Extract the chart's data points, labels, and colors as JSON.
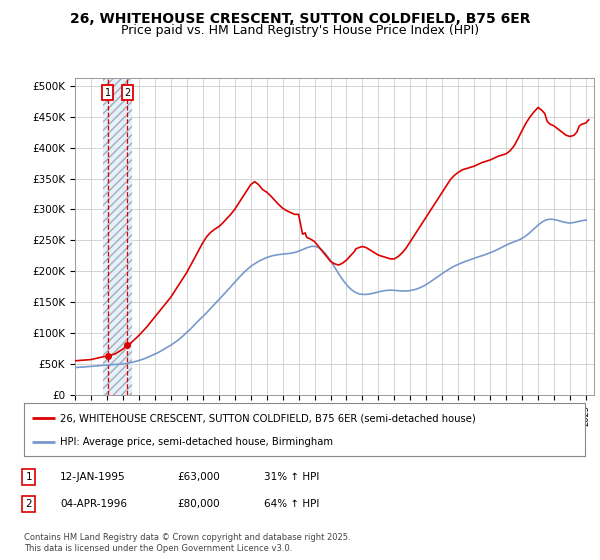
{
  "title": "26, WHITEHOUSE CRESCENT, SUTTON COLDFIELD, B75 6ER",
  "subtitle": "Price paid vs. HM Land Registry's House Price Index (HPI)",
  "ylabel_ticks": [
    "£0",
    "£50K",
    "£100K",
    "£150K",
    "£200K",
    "£250K",
    "£300K",
    "£350K",
    "£400K",
    "£450K",
    "£500K"
  ],
  "ytick_vals": [
    0,
    50000,
    100000,
    150000,
    200000,
    250000,
    300000,
    350000,
    400000,
    450000,
    500000
  ],
  "ylim": [
    0,
    512000
  ],
  "xlim_start": 1993.0,
  "xlim_end": 2025.5,
  "sale1_date": 1995.04,
  "sale1_price": 63000,
  "sale1_label": "1",
  "sale2_date": 1996.27,
  "sale2_price": 80000,
  "sale2_label": "2",
  "hatch_xmin": 1994.75,
  "hatch_xmax": 1996.58,
  "red_color": "#dd0000",
  "blue_color": "#7799cc",
  "hatch_facecolor": "#ddeeff",
  "hatch_edgecolor": "#aaaaaa",
  "grid_color": "#cccccc",
  "background_color": "#ffffff",
  "legend_line1": "26, WHITEHOUSE CRESCENT, SUTTON COLDFIELD, B75 6ER (semi-detached house)",
  "legend_line2": "HPI: Average price, semi-detached house, Birmingham",
  "table_row1": [
    "1",
    "12-JAN-1995",
    "£63,000",
    "31% ↑ HPI"
  ],
  "table_row2": [
    "2",
    "04-APR-1996",
    "£80,000",
    "64% ↑ HPI"
  ],
  "footnote": "Contains HM Land Registry data © Crown copyright and database right 2025.\nThis data is licensed under the Open Government Licence v3.0.",
  "title_fontsize": 10,
  "subtitle_fontsize": 9,
  "axis_fontsize": 7.5,
  "hpi_x": [
    1993.0,
    1993.08,
    1993.17,
    1993.25,
    1993.33,
    1993.42,
    1993.5,
    1993.58,
    1993.67,
    1993.75,
    1993.83,
    1993.92,
    1994.0,
    1994.08,
    1994.17,
    1994.25,
    1994.33,
    1994.42,
    1994.5,
    1994.58,
    1994.67,
    1994.75,
    1994.83,
    1994.92,
    1995.0,
    1995.08,
    1995.17,
    1995.25,
    1995.33,
    1995.42,
    1995.5,
    1995.58,
    1995.67,
    1995.75,
    1995.83,
    1995.92,
    1996.0,
    1996.08,
    1996.17,
    1996.25,
    1996.33,
    1996.42,
    1996.5,
    1996.58,
    1996.67,
    1996.75,
    1996.83,
    1996.92,
    1997.0,
    1997.08,
    1997.17,
    1997.25,
    1997.33,
    1997.42,
    1997.5,
    1997.58,
    1997.67,
    1997.75,
    1997.83,
    1997.92,
    1998.0,
    1998.08,
    1998.17,
    1998.25,
    1998.33,
    1998.42,
    1998.5,
    1998.58,
    1998.67,
    1998.75,
    1998.83,
    1998.92,
    1999.0,
    1999.08,
    1999.17,
    1999.25,
    1999.33,
    1999.42,
    1999.5,
    1999.58,
    1999.67,
    1999.75,
    1999.83,
    1999.92,
    2000.0,
    2000.08,
    2000.17,
    2000.25,
    2000.33,
    2000.42,
    2000.5,
    2000.58,
    2000.67,
    2000.75,
    2000.83,
    2000.92,
    2001.0,
    2001.08,
    2001.17,
    2001.25,
    2001.33,
    2001.42,
    2001.5,
    2001.58,
    2001.67,
    2001.75,
    2001.83,
    2001.92,
    2002.0,
    2002.08,
    2002.17,
    2002.25,
    2002.33,
    2002.42,
    2002.5,
    2002.58,
    2002.67,
    2002.75,
    2002.83,
    2002.92,
    2003.0,
    2003.08,
    2003.17,
    2003.25,
    2003.33,
    2003.42,
    2003.5,
    2003.58,
    2003.67,
    2003.75,
    2003.83,
    2003.92,
    2004.0,
    2004.08,
    2004.17,
    2004.25,
    2004.33,
    2004.42,
    2004.5,
    2004.58,
    2004.67,
    2004.75,
    2004.83,
    2004.92,
    2005.0,
    2005.08,
    2005.17,
    2005.25,
    2005.33,
    2005.42,
    2005.5,
    2005.58,
    2005.67,
    2005.75,
    2005.83,
    2005.92,
    2006.0,
    2006.08,
    2006.17,
    2006.25,
    2006.33,
    2006.42,
    2006.5,
    2006.58,
    2006.67,
    2006.75,
    2006.83,
    2006.92,
    2007.0,
    2007.08,
    2007.17,
    2007.25,
    2007.33,
    2007.42,
    2007.5,
    2007.58,
    2007.67,
    2007.75,
    2007.83,
    2007.92,
    2008.0,
    2008.08,
    2008.17,
    2008.25,
    2008.33,
    2008.42,
    2008.5,
    2008.58,
    2008.67,
    2008.75,
    2008.83,
    2008.92,
    2009.0,
    2009.08,
    2009.17,
    2009.25,
    2009.33,
    2009.42,
    2009.5,
    2009.58,
    2009.67,
    2009.75,
    2009.83,
    2009.92,
    2010.0,
    2010.08,
    2010.17,
    2010.25,
    2010.33,
    2010.42,
    2010.5,
    2010.58,
    2010.67,
    2010.75,
    2010.83,
    2010.92,
    2011.0,
    2011.08,
    2011.17,
    2011.25,
    2011.33,
    2011.42,
    2011.5,
    2011.58,
    2011.67,
    2011.75,
    2011.83,
    2011.92,
    2012.0,
    2012.08,
    2012.17,
    2012.25,
    2012.33,
    2012.42,
    2012.5,
    2012.58,
    2012.67,
    2012.75,
    2012.83,
    2012.92,
    2013.0,
    2013.08,
    2013.17,
    2013.25,
    2013.33,
    2013.42,
    2013.5,
    2013.58,
    2013.67,
    2013.75,
    2013.83,
    2013.92,
    2014.0,
    2014.08,
    2014.17,
    2014.25,
    2014.33,
    2014.42,
    2014.5,
    2014.58,
    2014.67,
    2014.75,
    2014.83,
    2014.92,
    2015.0,
    2015.08,
    2015.17,
    2015.25,
    2015.33,
    2015.42,
    2015.5,
    2015.58,
    2015.67,
    2015.75,
    2015.83,
    2015.92,
    2016.0,
    2016.08,
    2016.17,
    2016.25,
    2016.33,
    2016.42,
    2016.5,
    2016.58,
    2016.67,
    2016.75,
    2016.83,
    2016.92,
    2017.0,
    2017.08,
    2017.17,
    2017.25,
    2017.33,
    2017.42,
    2017.5,
    2017.58,
    2017.67,
    2017.75,
    2017.83,
    2017.92,
    2018.0,
    2018.08,
    2018.17,
    2018.25,
    2018.33,
    2018.42,
    2018.5,
    2018.58,
    2018.67,
    2018.75,
    2018.83,
    2018.92,
    2019.0,
    2019.08,
    2019.17,
    2019.25,
    2019.33,
    2019.42,
    2019.5,
    2019.58,
    2019.67,
    2019.75,
    2019.83,
    2019.92,
    2020.0,
    2020.08,
    2020.17,
    2020.25,
    2020.33,
    2020.42,
    2020.5,
    2020.58,
    2020.67,
    2020.75,
    2020.83,
    2020.92,
    2021.0,
    2021.08,
    2021.17,
    2021.25,
    2021.33,
    2021.42,
    2021.5,
    2021.58,
    2021.67,
    2021.75,
    2021.83,
    2021.92,
    2022.0,
    2022.08,
    2022.17,
    2022.25,
    2022.33,
    2022.42,
    2022.5,
    2022.58,
    2022.67,
    2022.75,
    2022.83,
    2022.92,
    2023.0,
    2023.08,
    2023.17,
    2023.25,
    2023.33,
    2023.42,
    2023.5,
    2023.58,
    2023.67,
    2023.75,
    2023.83,
    2023.92,
    2024.0,
    2024.08,
    2024.17,
    2024.25,
    2024.33,
    2024.42,
    2024.5,
    2024.58,
    2024.67,
    2024.75,
    2024.83,
    2024.92,
    2025.0
  ],
  "hpi_y": [
    44000,
    44200,
    44400,
    44600,
    44700,
    44800,
    44900,
    45100,
    45300,
    45500,
    45700,
    45900,
    46100,
    46300,
    46500,
    46700,
    46900,
    47000,
    47200,
    47300,
    47500,
    47700,
    47900,
    48100,
    48300,
    48500,
    48600,
    48700,
    48800,
    48900,
    49000,
    49100,
    49200,
    49300,
    49500,
    49700,
    49900,
    50200,
    50500,
    50800,
    51200,
    51600,
    52100,
    52600,
    53100,
    53700,
    54300,
    54900,
    55500,
    56200,
    56900,
    57600,
    58400,
    59200,
    60100,
    61000,
    61900,
    62800,
    63800,
    64800,
    65800,
    66800,
    67900,
    69000,
    70200,
    71400,
    72600,
    73800,
    75100,
    76400,
    77700,
    79000,
    80300,
    81700,
    83200,
    84700,
    86200,
    87800,
    89500,
    91200,
    93000,
    94900,
    96800,
    98800,
    100800,
    102800,
    104900,
    107000,
    109200,
    111500,
    113700,
    115900,
    118100,
    120300,
    122400,
    124500,
    126600,
    128700,
    130800,
    133000,
    135200,
    137500,
    139800,
    142100,
    144400,
    146700,
    149000,
    151300,
    153600,
    155900,
    158200,
    160500,
    162800,
    165200,
    167600,
    170000,
    172400,
    174800,
    177200,
    179600,
    182000,
    184400,
    186800,
    189200,
    191500,
    193700,
    195900,
    198100,
    200200,
    202200,
    204100,
    205900,
    207600,
    209200,
    210700,
    212100,
    213400,
    214700,
    215900,
    217100,
    218200,
    219200,
    220200,
    221200,
    222100,
    222900,
    223600,
    224300,
    224900,
    225400,
    225800,
    226200,
    226600,
    226900,
    227200,
    227400,
    227600,
    227800,
    228000,
    228200,
    228400,
    228700,
    229000,
    229400,
    229800,
    230300,
    230900,
    231600,
    232400,
    233200,
    234100,
    235000,
    235900,
    236800,
    237700,
    238500,
    239200,
    239800,
    240200,
    240300,
    240200,
    239800,
    239100,
    238100,
    236800,
    235200,
    233300,
    231100,
    228700,
    226100,
    223300,
    220300,
    217100,
    213800,
    210400,
    206900,
    203400,
    199900,
    196400,
    193000,
    189700,
    186600,
    183600,
    180800,
    178200,
    175800,
    173600,
    171600,
    169800,
    168100,
    166700,
    165500,
    164500,
    163700,
    163100,
    162700,
    162500,
    162400,
    162400,
    162500,
    162700,
    163000,
    163400,
    163800,
    164300,
    164800,
    165400,
    165900,
    166500,
    167000,
    167500,
    167900,
    168300,
    168600,
    168900,
    169100,
    169200,
    169300,
    169300,
    169200,
    169000,
    168800,
    168600,
    168400,
    168200,
    168100,
    168000,
    167900,
    167900,
    168000,
    168200,
    168400,
    168700,
    169100,
    169600,
    170100,
    170700,
    171400,
    172200,
    173000,
    174000,
    175000,
    176100,
    177300,
    178600,
    179900,
    181300,
    182700,
    184200,
    185700,
    187200,
    188700,
    190200,
    191700,
    193200,
    194700,
    196200,
    197700,
    199200,
    200600,
    202000,
    203300,
    204600,
    205800,
    207000,
    208100,
    209200,
    210200,
    211200,
    212100,
    213000,
    213900,
    214700,
    215500,
    216300,
    217100,
    217900,
    218600,
    219400,
    220200,
    221000,
    221700,
    222400,
    223100,
    223800,
    224500,
    225200,
    225900,
    226600,
    227400,
    228200,
    229000,
    229900,
    230800,
    231700,
    232600,
    233600,
    234600,
    235700,
    236700,
    237800,
    238900,
    240000,
    241100,
    242200,
    243200,
    244200,
    245100,
    246000,
    246800,
    247600,
    248400,
    249200,
    250100,
    251000,
    252100,
    253300,
    254600,
    256000,
    257600,
    259200,
    261000,
    262900,
    264800,
    266800,
    268800,
    270800,
    272700,
    274600,
    276400,
    278100,
    279600,
    280900,
    282000,
    282900,
    283500,
    283900,
    284100,
    284100,
    283900,
    283600,
    283200,
    282700,
    282100,
    281500,
    280900,
    280300,
    279700,
    279200,
    278700,
    278300,
    277900,
    278000,
    278200,
    278500,
    278900,
    279400,
    279900,
    280400,
    280900,
    281400,
    281800,
    282200,
    282500,
    282700
  ],
  "prop_x": [
    1993.0,
    1993.5,
    1994.0,
    1994.5,
    1995.04,
    1995.5,
    1995.75,
    1996.0,
    1996.27,
    1996.5,
    1996.75,
    1997.0,
    1997.25,
    1997.5,
    1997.75,
    1998.0,
    1998.25,
    1998.5,
    1998.75,
    1999.0,
    1999.25,
    1999.5,
    1999.75,
    2000.0,
    2000.25,
    2000.5,
    2000.75,
    2001.0,
    2001.25,
    2001.5,
    2001.75,
    2002.0,
    2002.25,
    2002.5,
    2002.75,
    2003.0,
    2003.25,
    2003.5,
    2003.75,
    2004.0,
    2004.25,
    2004.5,
    2004.75,
    2005.0,
    2005.25,
    2005.5,
    2005.75,
    2006.0,
    2006.25,
    2006.5,
    2006.75,
    2007.0,
    2007.25,
    2007.42,
    2007.5,
    2007.75,
    2008.0,
    2008.25,
    2008.5,
    2008.75,
    2009.0,
    2009.25,
    2009.5,
    2009.75,
    2010.0,
    2010.25,
    2010.5,
    2010.58,
    2010.75,
    2011.0,
    2011.25,
    2011.5,
    2011.75,
    2012.0,
    2012.25,
    2012.5,
    2012.75,
    2013.0,
    2013.25,
    2013.5,
    2013.75,
    2014.0,
    2014.25,
    2014.5,
    2014.75,
    2015.0,
    2015.25,
    2015.5,
    2015.75,
    2016.0,
    2016.25,
    2016.5,
    2016.75,
    2017.0,
    2017.25,
    2017.5,
    2017.75,
    2018.0,
    2018.25,
    2018.5,
    2018.75,
    2019.0,
    2019.25,
    2019.5,
    2019.75,
    2020.0,
    2020.25,
    2020.5,
    2020.75,
    2021.0,
    2021.25,
    2021.5,
    2021.75,
    2022.0,
    2022.25,
    2022.42,
    2022.5,
    2022.58,
    2022.75,
    2023.0,
    2023.25,
    2023.5,
    2023.75,
    2024.0,
    2024.25,
    2024.42,
    2024.5,
    2024.58,
    2024.75,
    2025.0,
    2025.17
  ],
  "prop_y": [
    55000,
    56000,
    57000,
    60000,
    63000,
    66000,
    70000,
    74000,
    80000,
    84000,
    90000,
    96000,
    103000,
    110000,
    118000,
    126000,
    134000,
    142000,
    150000,
    158000,
    168000,
    178000,
    188000,
    198000,
    210000,
    222000,
    234000,
    246000,
    256000,
    263000,
    268000,
    272000,
    278000,
    285000,
    292000,
    300000,
    310000,
    320000,
    330000,
    340000,
    345000,
    340000,
    332000,
    328000,
    322000,
    315000,
    308000,
    302000,
    298000,
    295000,
    292000,
    292000,
    260000,
    262000,
    255000,
    252000,
    248000,
    240000,
    232000,
    224000,
    216000,
    212000,
    210000,
    213000,
    218000,
    225000,
    232000,
    236000,
    238000,
    240000,
    238000,
    234000,
    230000,
    226000,
    224000,
    222000,
    220000,
    220000,
    224000,
    230000,
    238000,
    248000,
    258000,
    268000,
    278000,
    288000,
    298000,
    308000,
    318000,
    328000,
    338000,
    348000,
    355000,
    360000,
    364000,
    366000,
    368000,
    370000,
    373000,
    376000,
    378000,
    380000,
    383000,
    386000,
    388000,
    390000,
    395000,
    403000,
    415000,
    428000,
    440000,
    450000,
    458000,
    465000,
    460000,
    455000,
    448000,
    442000,
    438000,
    435000,
    430000,
    425000,
    420000,
    418000,
    420000,
    425000,
    430000,
    435000,
    438000,
    440000,
    445000
  ]
}
